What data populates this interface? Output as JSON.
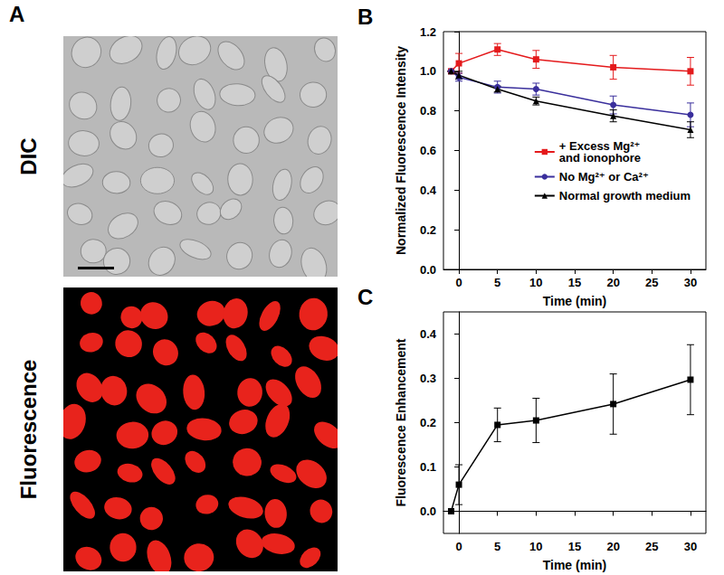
{
  "panel_a": {
    "label": "A",
    "images": [
      {
        "label": "DIC"
      },
      {
        "label": "Fluorescence"
      }
    ]
  },
  "chart_data": [
    {
      "panel": "B",
      "type": "line",
      "x": [
        -1,
        0,
        5,
        10,
        20,
        30
      ],
      "xlim": [
        -2,
        32
      ],
      "xticks": [
        0,
        5,
        10,
        15,
        20,
        25,
        30
      ],
      "ylim": [
        0,
        1.2
      ],
      "yticks": [
        {
          "value": 0,
          "label": "0.0"
        },
        {
          "value": 0.2,
          "label": "0.2"
        },
        {
          "value": 0.4,
          "label": "0.4"
        },
        {
          "value": 0.6,
          "label": "0.6"
        },
        {
          "value": 0.8,
          "label": "0.8"
        },
        {
          "value": 1,
          "label": "1.0"
        },
        {
          "value": 1.2,
          "label": "1.2"
        }
      ],
      "x_label": "Time (min)",
      "y_label": "Normalized Fluorescence Intensity",
      "legend": "right",
      "series": [
        {
          "name": "+ Excess Mg²⁺\nand ionophore",
          "color": "#e41a1c",
          "marker": "square",
          "values": [
            1.0,
            1.04,
            1.11,
            1.06,
            1.02,
            1.0
          ],
          "errors": [
            0,
            0.05,
            0.03,
            0.045,
            0.06,
            0.07
          ]
        },
        {
          "name": "No Mg²⁺ or Ca²⁺",
          "color": "#3a2f9c",
          "marker": "circle",
          "values": [
            1.0,
            0.97,
            0.92,
            0.91,
            0.83,
            0.78
          ],
          "errors": [
            0,
            0.02,
            0.03,
            0.03,
            0.045,
            0.06
          ]
        },
        {
          "name": "Normal growth medium",
          "color": "#000000",
          "marker": "triangle",
          "values": [
            1.0,
            0.98,
            0.91,
            0.85,
            0.775,
            0.705
          ],
          "errors": [
            0,
            0.02,
            0.015,
            0.02,
            0.03,
            0.04
          ]
        }
      ]
    },
    {
      "panel": "C",
      "type": "line",
      "x": [
        -1,
        0,
        5,
        10,
        20,
        30
      ],
      "xlim": [
        -2,
        32
      ],
      "xticks": [
        0,
        5,
        10,
        15,
        20,
        25,
        30
      ],
      "ylim": [
        -0.05,
        0.45
      ],
      "yticks": [
        {
          "value": 0,
          "label": "0.0"
        },
        {
          "value": 0.1,
          "label": "0.1"
        },
        {
          "value": 0.2,
          "label": "0.2"
        },
        {
          "value": 0.3,
          "label": "0.3"
        },
        {
          "value": 0.4,
          "label": "0.4"
        }
      ],
      "x_label": "Time (min)",
      "y_label": "Fluorescence Enhancement",
      "color": "#000000",
      "marker": "square",
      "values": [
        0,
        0.06,
        0.195,
        0.205,
        0.242,
        0.297
      ],
      "errors": [
        0,
        0.045,
        0.038,
        0.05,
        0.068,
        0.079
      ]
    }
  ]
}
